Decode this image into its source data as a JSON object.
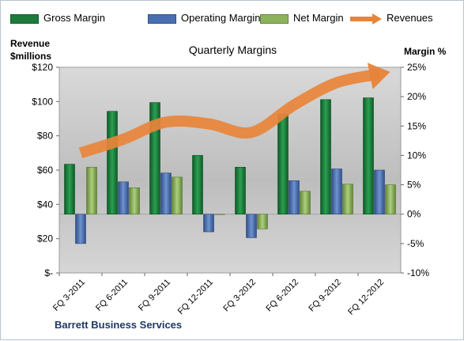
{
  "chart_data": {
    "type": "bar",
    "title": "Quarterly Margins",
    "company": "Barrett Business Services",
    "ylabel_left": "Revenue\n$millions",
    "ylabel_right": "Margin %",
    "categories": [
      "FQ 3-2011",
      "FQ 6-2011",
      "FQ 9-2011",
      "FQ 12-2011",
      "FQ 3-2012",
      "FQ 6-2012",
      "FQ 9-2012",
      "FQ 12-2012"
    ],
    "left_ticks": [
      "$120",
      "$100",
      "$80",
      "$60",
      "$40",
      "$20",
      "$-"
    ],
    "right_ticks": [
      "25%",
      "20%",
      "15%",
      "10%",
      "5%",
      "0%",
      "-5%",
      "-10%"
    ],
    "ylim_left": [
      0,
      120
    ],
    "ylim_right": [
      -10,
      25
    ],
    "series": [
      {
        "name": "Gross Margin",
        "axis": "right",
        "unit": "%",
        "values": [
          8.5,
          17.5,
          19.0,
          10.0,
          8.0,
          17.0,
          19.5,
          19.8
        ],
        "color": "#1e7b3c"
      },
      {
        "name": "Operating Margin",
        "axis": "right",
        "unit": "%",
        "values": [
          -5.0,
          5.5,
          7.0,
          -3.0,
          -4.0,
          5.7,
          7.7,
          7.5
        ],
        "color": "#4a6fb0"
      },
      {
        "name": "Net Margin",
        "axis": "right",
        "unit": "%",
        "values": [
          8.0,
          4.5,
          6.3,
          0.0,
          -2.5,
          3.9,
          5.1,
          5.0
        ],
        "color": "#8db25c"
      },
      {
        "name": "Revenues",
        "axis": "left",
        "unit": "$M",
        "type": "line",
        "values": [
          70,
          78,
          88,
          87,
          82,
          98,
          111,
          116
        ],
        "color": "#e8843a"
      }
    ],
    "colors": {
      "plot_bg": "#c8c8c8",
      "frame_border": "#b9c3d0",
      "footer_text": "#1f3864"
    }
  }
}
